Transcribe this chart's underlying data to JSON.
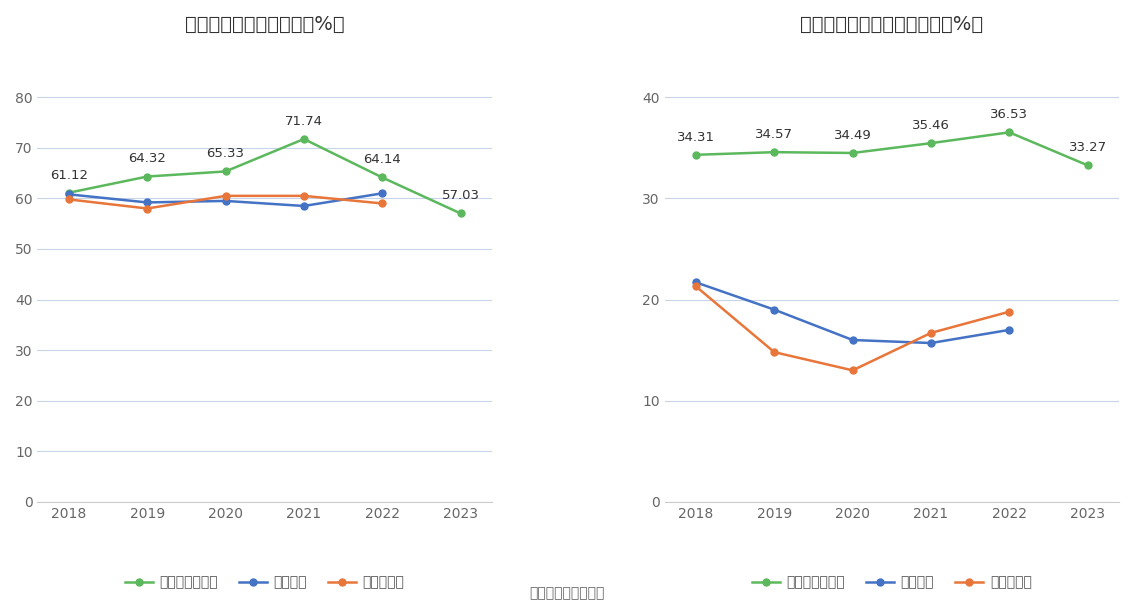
{
  "years": [
    2018,
    2019,
    2020,
    2021,
    2022,
    2023
  ],
  "left_title": "近年来资产负债率情况（%）",
  "right_title": "近年来有息资产负债率情况（%）",
  "left": {
    "company": [
      61.12,
      64.32,
      65.33,
      71.74,
      64.14,
      57.03
    ],
    "industry_mean": [
      60.8,
      59.2,
      59.5,
      58.5,
      61.0,
      null
    ],
    "industry_median": [
      59.8,
      58.0,
      60.5,
      60.5,
      59.0,
      null
    ],
    "company_label": "公司资产负债率",
    "mean_label": "行业均值",
    "median_label": "行业中位数",
    "ylim": [
      0,
      90
    ],
    "yticks": [
      0,
      10,
      20,
      30,
      40,
      50,
      60,
      70,
      80
    ]
  },
  "right": {
    "company": [
      34.31,
      34.57,
      34.49,
      35.46,
      36.53,
      33.27
    ],
    "industry_mean": [
      21.7,
      19.0,
      16.0,
      15.7,
      17.0,
      null
    ],
    "industry_median": [
      21.3,
      14.8,
      13.0,
      16.7,
      18.8,
      null
    ],
    "company_label": "有息资产负债率",
    "mean_label": "行业均值",
    "median_label": "行业中位数",
    "ylim": [
      0,
      45
    ],
    "yticks": [
      0,
      10,
      20,
      30,
      40
    ]
  },
  "source_text": "数据来源：恒生聚源",
  "color_company": "#5cb85c",
  "color_mean": "#4472c4",
  "color_median": "#e8763a",
  "background_color": "#ffffff",
  "grid_color": "#c8d4e8",
  "title_fontsize": 14,
  "label_fontsize": 10,
  "annotation_fontsize": 9.5
}
